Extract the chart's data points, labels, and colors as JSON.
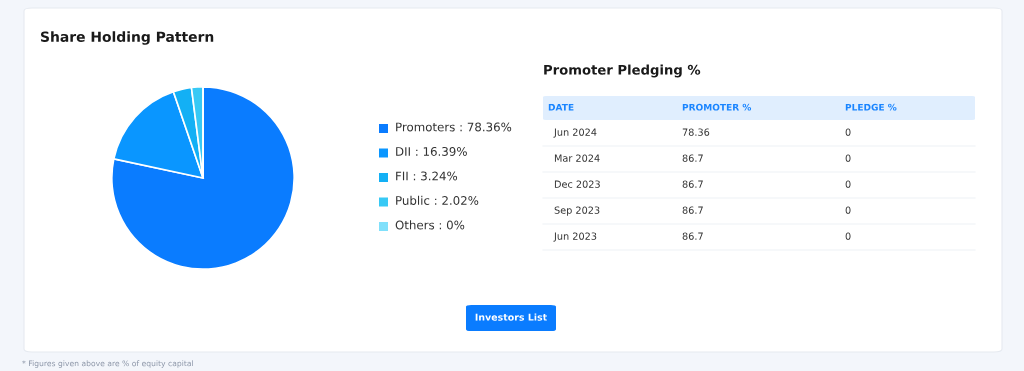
{
  "chart_data": [
    {
      "type": "pie",
      "title": "Share Holding Pattern",
      "categories": [
        "Promoters",
        "DII",
        "FII",
        "Public",
        "Others"
      ],
      "values": [
        78.36,
        16.39,
        3.24,
        2.02,
        0
      ],
      "value_labels": [
        "78.36%",
        "16.39%",
        "3.24%",
        "2.02%",
        "0%"
      ],
      "colors": [
        "#0a7cff",
        "#0a96ff",
        "#13b0f5",
        "#37c9f5",
        "#80e0fb"
      ],
      "legend": "right",
      "annotations": [
        "Investors List",
        "* Figures given above are % of equity capital"
      ]
    },
    {
      "type": "other",
      "title": "Promoter Pledging %",
      "categories": [
        "DATE",
        "PROMOTER %",
        "PLEDGE %"
      ],
      "cell_labels": [
        [
          "Jun 2024",
          "78.36",
          "0"
        ],
        [
          "Mar 2024",
          "86.7",
          "0"
        ],
        [
          "Dec 2023",
          "86.7",
          "0"
        ],
        [
          "Sep 2023",
          "86.7",
          "0"
        ],
        [
          "Jun 2023",
          "86.7",
          "0"
        ]
      ]
    }
  ]
}
